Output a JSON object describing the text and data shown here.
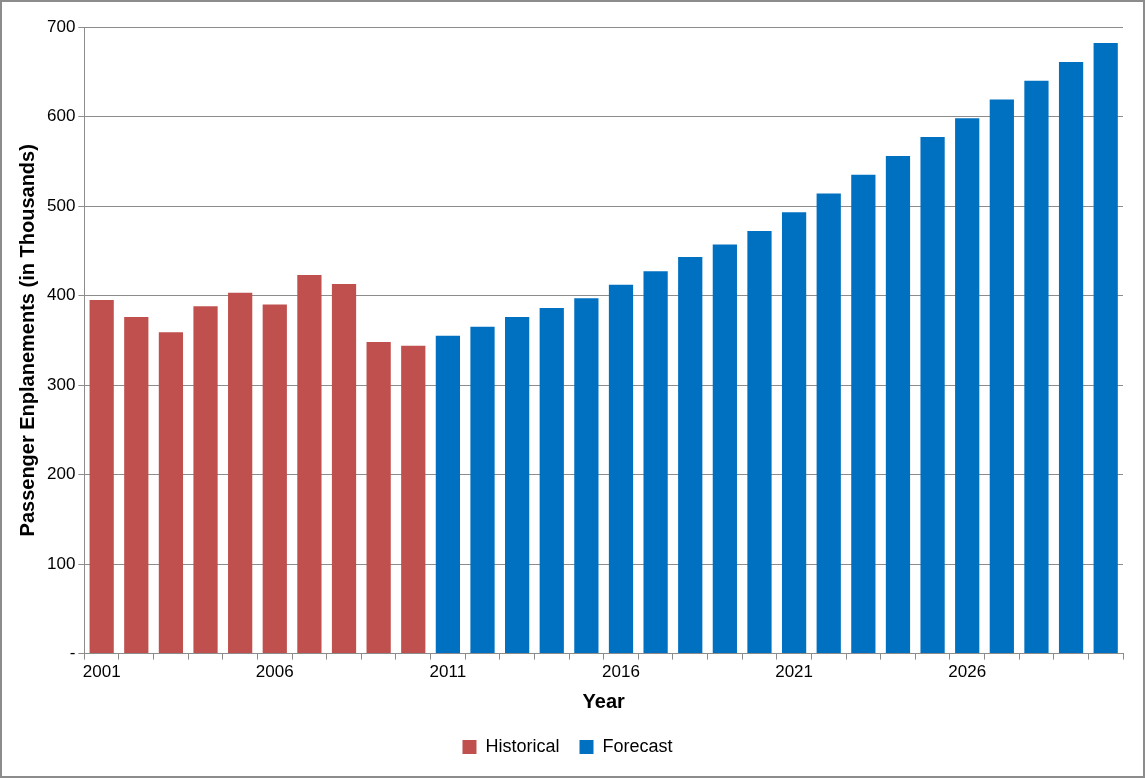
{
  "chart_data": {
    "type": "bar",
    "xlabel": "Year",
    "ylabel": "Passenger Enplanements (in Thousands)",
    "categories": [
      "2001",
      null,
      null,
      null,
      null,
      "2006",
      null,
      null,
      null,
      null,
      "2011",
      null,
      null,
      null,
      null,
      "2016",
      null,
      null,
      null,
      null,
      "2021",
      null,
      null,
      null,
      null,
      "2026",
      null,
      null,
      null,
      null
    ],
    "series": [
      {
        "name": "Historical",
        "color": "#c0504d",
        "values": [
          395,
          376,
          359,
          388,
          403,
          390,
          423,
          413,
          348,
          344,
          null,
          null,
          null,
          null,
          null,
          null,
          null,
          null,
          null,
          null,
          null,
          null,
          null,
          null,
          null,
          null,
          null,
          null,
          null,
          null
        ]
      },
      {
        "name": "Forecast",
        "color": "#0070c0",
        "values": [
          null,
          null,
          null,
          null,
          null,
          null,
          null,
          null,
          null,
          null,
          355,
          365,
          376,
          386,
          397,
          412,
          427,
          443,
          457,
          472,
          493,
          514,
          535,
          556,
          577,
          598,
          619,
          640,
          661,
          682
        ]
      }
    ],
    "ylim": [
      0,
      700
    ],
    "yticks": [
      {
        "value": 0,
        "label": "-"
      },
      100,
      200,
      300,
      400,
      500,
      600,
      700
    ],
    "grid": "y",
    "legend": "bottom"
  }
}
